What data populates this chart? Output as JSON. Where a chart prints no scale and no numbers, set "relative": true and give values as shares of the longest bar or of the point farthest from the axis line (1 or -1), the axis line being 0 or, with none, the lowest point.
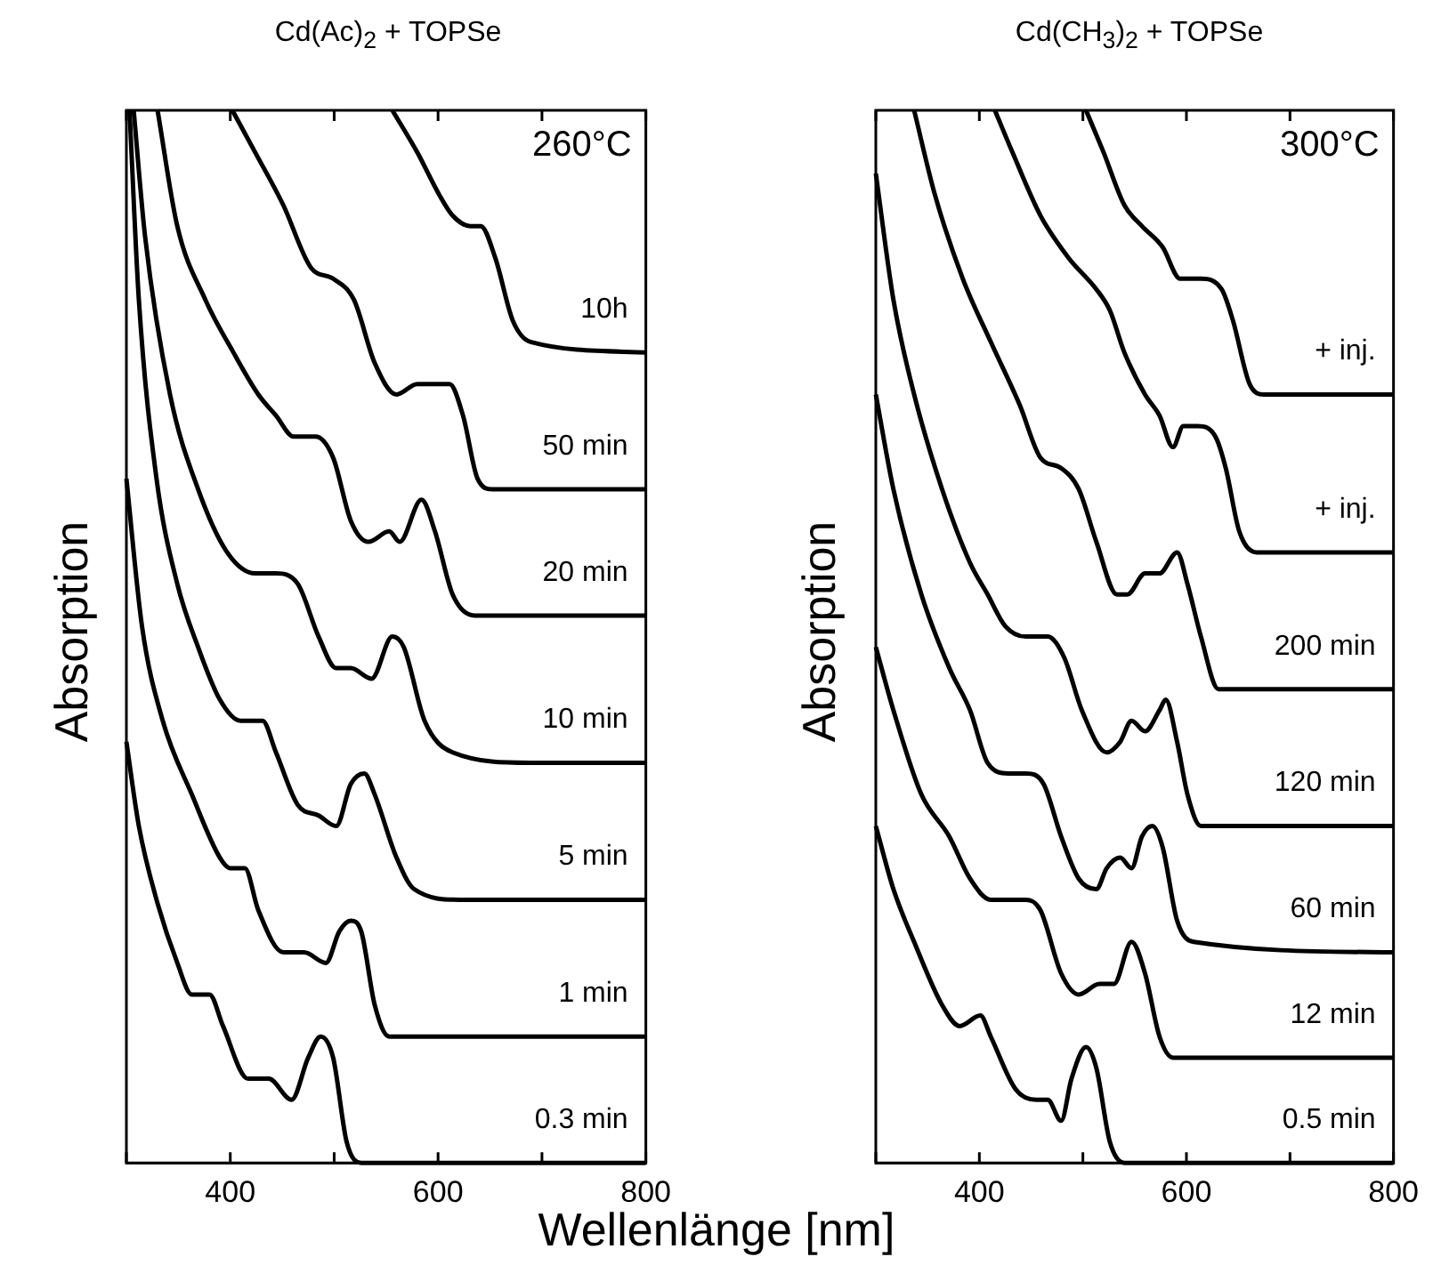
{
  "chart_data": [
    {
      "type": "line",
      "title": "Cd(Ac)$_{2}$ + TOPSe",
      "ylabel": "Absorption",
      "xlabel": "Wellenlänge [nm]",
      "annotations": [
        "260°C"
      ],
      "relative": true,
      "xlim": [
        300,
        800
      ],
      "xticks": [
        {
          "value": 300,
          "label": null
        },
        400,
        {
          "value": 500,
          "label": null
        },
        600,
        {
          "value": 700,
          "label": null
        },
        800
      ],
      "series": [
        {
          "name": "10h",
          "color": "#000000",
          "x": [
            556,
            580,
            601,
            614,
            631,
            641,
            655,
            672,
            689,
            800
          ],
          "values": [
            1.0,
            0.96,
            0.92,
            0.9,
            0.89,
            0.89,
            0.86,
            0.8,
            0.78,
            0.77
          ]
        },
        {
          "name": "50 min",
          "color": "#000000",
          "x": [
            402,
            424,
            451,
            478,
            499,
            519,
            539,
            560,
            580,
            601,
            611,
            624,
            638,
            652,
            800
          ],
          "values": [
            1.0,
            0.96,
            0.91,
            0.85,
            0.84,
            0.82,
            0.76,
            0.73,
            0.74,
            0.74,
            0.74,
            0.71,
            0.65,
            0.64,
            0.64
          ]
        },
        {
          "name": "20 min",
          "color": "#000000",
          "x": [
            330,
            349,
            376,
            403,
            427,
            444,
            461,
            482,
            499,
            516,
            533,
            553,
            563,
            584,
            597,
            614,
            635,
            800
          ],
          "values": [
            1.0,
            0.89,
            0.82,
            0.77,
            0.73,
            0.71,
            0.69,
            0.69,
            0.67,
            0.61,
            0.59,
            0.6,
            0.59,
            0.63,
            0.6,
            0.54,
            0.52,
            0.52
          ]
        },
        {
          "name": "10 min",
          "color": "#000000",
          "x": [
            307,
            318,
            342,
            369,
            397,
            424,
            444,
            465,
            485,
            502,
            516,
            536,
            556,
            567,
            587,
            614,
            689,
            800
          ],
          "values": [
            1.0,
            0.88,
            0.73,
            0.64,
            0.58,
            0.56,
            0.56,
            0.55,
            0.5,
            0.47,
            0.47,
            0.46,
            0.5,
            0.49,
            0.42,
            0.39,
            0.38,
            0.38
          ]
        },
        {
          "name": "5 min",
          "color": "#000000",
          "x": [
            303,
            312,
            329,
            349,
            369,
            390,
            410,
            431,
            444,
            465,
            485,
            502,
            516,
            529,
            539,
            560,
            577,
            621,
            800
          ],
          "values": [
            1.0,
            0.82,
            0.65,
            0.55,
            0.49,
            0.44,
            0.42,
            0.42,
            0.39,
            0.34,
            0.33,
            0.32,
            0.36,
            0.37,
            0.35,
            0.29,
            0.26,
            0.25,
            0.25
          ]
        },
        {
          "name": "1 min",
          "color": "#000000",
          "x": [
            300,
            315,
            335,
            363,
            390,
            400,
            414,
            427,
            451,
            471,
            492,
            505,
            516,
            526,
            539,
            553,
            621,
            800
          ],
          "values": [
            0.65,
            0.51,
            0.42,
            0.35,
            0.29,
            0.28,
            0.28,
            0.24,
            0.2,
            0.2,
            0.19,
            0.22,
            0.23,
            0.22,
            0.15,
            0.12,
            0.12,
            0.12
          ]
        },
        {
          "name": "0.3 min",
          "color": "#000000",
          "x": [
            300,
            312,
            329,
            349,
            363,
            380,
            393,
            417,
            437,
            459,
            475,
            487,
            499,
            512,
            526,
            800
          ],
          "values": [
            0.4,
            0.32,
            0.25,
            0.19,
            0.16,
            0.16,
            0.13,
            0.08,
            0.08,
            0.06,
            0.1,
            0.12,
            0.1,
            0.02,
            0,
            0
          ]
        }
      ]
    },
    {
      "type": "line",
      "title": "Cd(CH$_{3}$)$_{2}$ + TOPSe",
      "ylabel": "Absorption",
      "annotations": [
        "300°C"
      ],
      "relative": true,
      "xlim": [
        300,
        800
      ],
      "xticks": [
        {
          "value": 300,
          "label": null
        },
        400,
        {
          "value": 500,
          "label": null
        },
        600,
        {
          "value": 700,
          "label": null
        },
        800
      ],
      "series": [
        {
          "name": "+ inj.",
          "color": "#000000",
          "x": [
            503,
            520,
            540,
            557,
            577,
            594,
            614,
            634,
            645,
            661,
            675,
            800
          ],
          "values": [
            1.0,
            0.96,
            0.91,
            0.89,
            0.87,
            0.84,
            0.84,
            0.83,
            0.8,
            0.74,
            0.73,
            0.73
          ]
        },
        {
          "name": "+ inj.",
          "color": "#000000",
          "x": [
            415,
            432,
            459,
            486,
            513,
            526,
            540,
            560,
            574,
            587,
            597,
            611,
            628,
            638,
            651,
            668,
            800
          ],
          "values": [
            1.0,
            0.96,
            0.9,
            0.86,
            0.83,
            0.81,
            0.77,
            0.73,
            0.71,
            0.68,
            0.7,
            0.7,
            0.69,
            0.66,
            0.6,
            0.58,
            0.58
          ]
        },
        {
          "name": "200 min",
          "color": "#000000",
          "x": [
            337,
            357,
            384,
            411,
            439,
            459,
            479,
            496,
            513,
            533,
            543,
            560,
            574,
            591,
            601,
            614,
            631,
            800
          ],
          "values": [
            1.0,
            0.92,
            0.84,
            0.78,
            0.72,
            0.67,
            0.66,
            0.64,
            0.59,
            0.54,
            0.54,
            0.56,
            0.56,
            0.58,
            0.55,
            0.5,
            0.45,
            0.45
          ]
        },
        {
          "name": "120 min",
          "color": "#000000",
          "x": [
            300,
            317,
            337,
            364,
            391,
            408,
            425,
            445,
            466,
            482,
            499,
            523,
            536,
            547,
            560,
            574,
            580,
            591,
            601,
            614,
            800
          ],
          "values": [
            0.94,
            0.82,
            0.73,
            0.64,
            0.57,
            0.54,
            0.51,
            0.5,
            0.5,
            0.48,
            0.43,
            0.39,
            0.4,
            0.42,
            0.41,
            0.43,
            0.44,
            0.4,
            0.35,
            0.32,
            0.32
          ]
        },
        {
          "name": "60 min",
          "color": "#000000",
          "x": [
            300,
            317,
            344,
            371,
            391,
            408,
            428,
            445,
            462,
            479,
            496,
            513,
            523,
            536,
            547,
            557,
            567,
            577,
            591,
            607,
            800
          ],
          "values": [
            0.73,
            0.64,
            0.54,
            0.47,
            0.43,
            0.38,
            0.37,
            0.37,
            0.36,
            0.31,
            0.27,
            0.26,
            0.28,
            0.29,
            0.28,
            0.31,
            0.32,
            0.3,
            0.23,
            0.21,
            0.2
          ]
        },
        {
          "name": "12 min",
          "color": "#000000",
          "x": [
            300,
            317,
            344,
            371,
            391,
            411,
            432,
            445,
            459,
            479,
            496,
            516,
            530,
            547,
            560,
            574,
            587,
            800
          ],
          "values": [
            0.49,
            0.43,
            0.35,
            0.31,
            0.27,
            0.25,
            0.25,
            0.25,
            0.24,
            0.18,
            0.16,
            0.17,
            0.17,
            0.21,
            0.18,
            0.12,
            0.1,
            0.1
          ]
        },
        {
          "name": "0.5 min",
          "color": "#000000",
          "x": [
            300,
            317,
            337,
            364,
            381,
            401,
            411,
            435,
            455,
            466,
            479,
            489,
            503,
            513,
            526,
            540,
            800
          ],
          "values": [
            0.32,
            0.26,
            0.21,
            0.15,
            0.13,
            0.14,
            0.12,
            0.07,
            0.06,
            0.06,
            0.04,
            0.08,
            0.11,
            0.09,
            0.02,
            0,
            0
          ]
        }
      ]
    }
  ]
}
